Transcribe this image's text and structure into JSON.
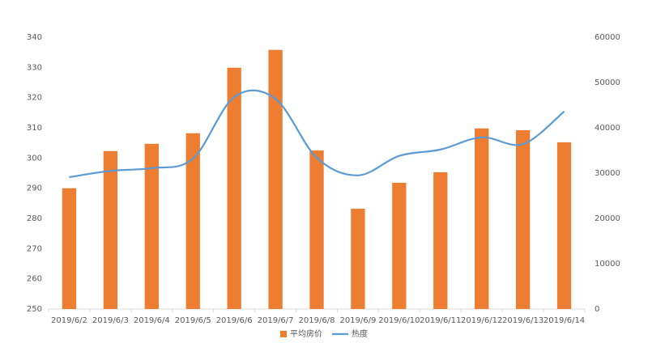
{
  "chart_data": {
    "type": "bar-line",
    "categories": [
      "2019/6/2",
      "2019/6/3",
      "2019/6/4",
      "2019/6/5",
      "2019/6/6",
      "2019/6/7",
      "2019/6/8",
      "2019/6/9",
      "2019/6/10",
      "2019/6/11",
      "2019/6/12",
      "2019/6/13",
      "2019/6/14"
    ],
    "series": [
      {
        "name": "平均房价",
        "type": "bar",
        "color": "#ed7d31",
        "values": [
          290,
          302.3,
          304.7,
          308.2,
          329.9,
          335.8,
          302.5,
          283.2,
          291.8,
          295.3,
          309.8,
          309.2,
          305.2
        ]
      },
      {
        "name": "热度",
        "type": "line",
        "axis": "y2",
        "smooth": true,
        "color": "#5b9bd5",
        "values": [
          29100,
          30500,
          31100,
          33200,
          46800,
          46400,
          33400,
          29500,
          33800,
          35200,
          37900,
          36400,
          43600
        ]
      }
    ],
    "ylim": [
      250,
      340
    ],
    "yticks": [
      250,
      260,
      270,
      280,
      290,
      300,
      310,
      320,
      330,
      340
    ],
    "y2lim": [
      0,
      60000
    ],
    "y2ticks": [
      0,
      10000,
      20000,
      30000,
      40000,
      50000,
      60000
    ],
    "grid": false,
    "legend": "bottom"
  }
}
